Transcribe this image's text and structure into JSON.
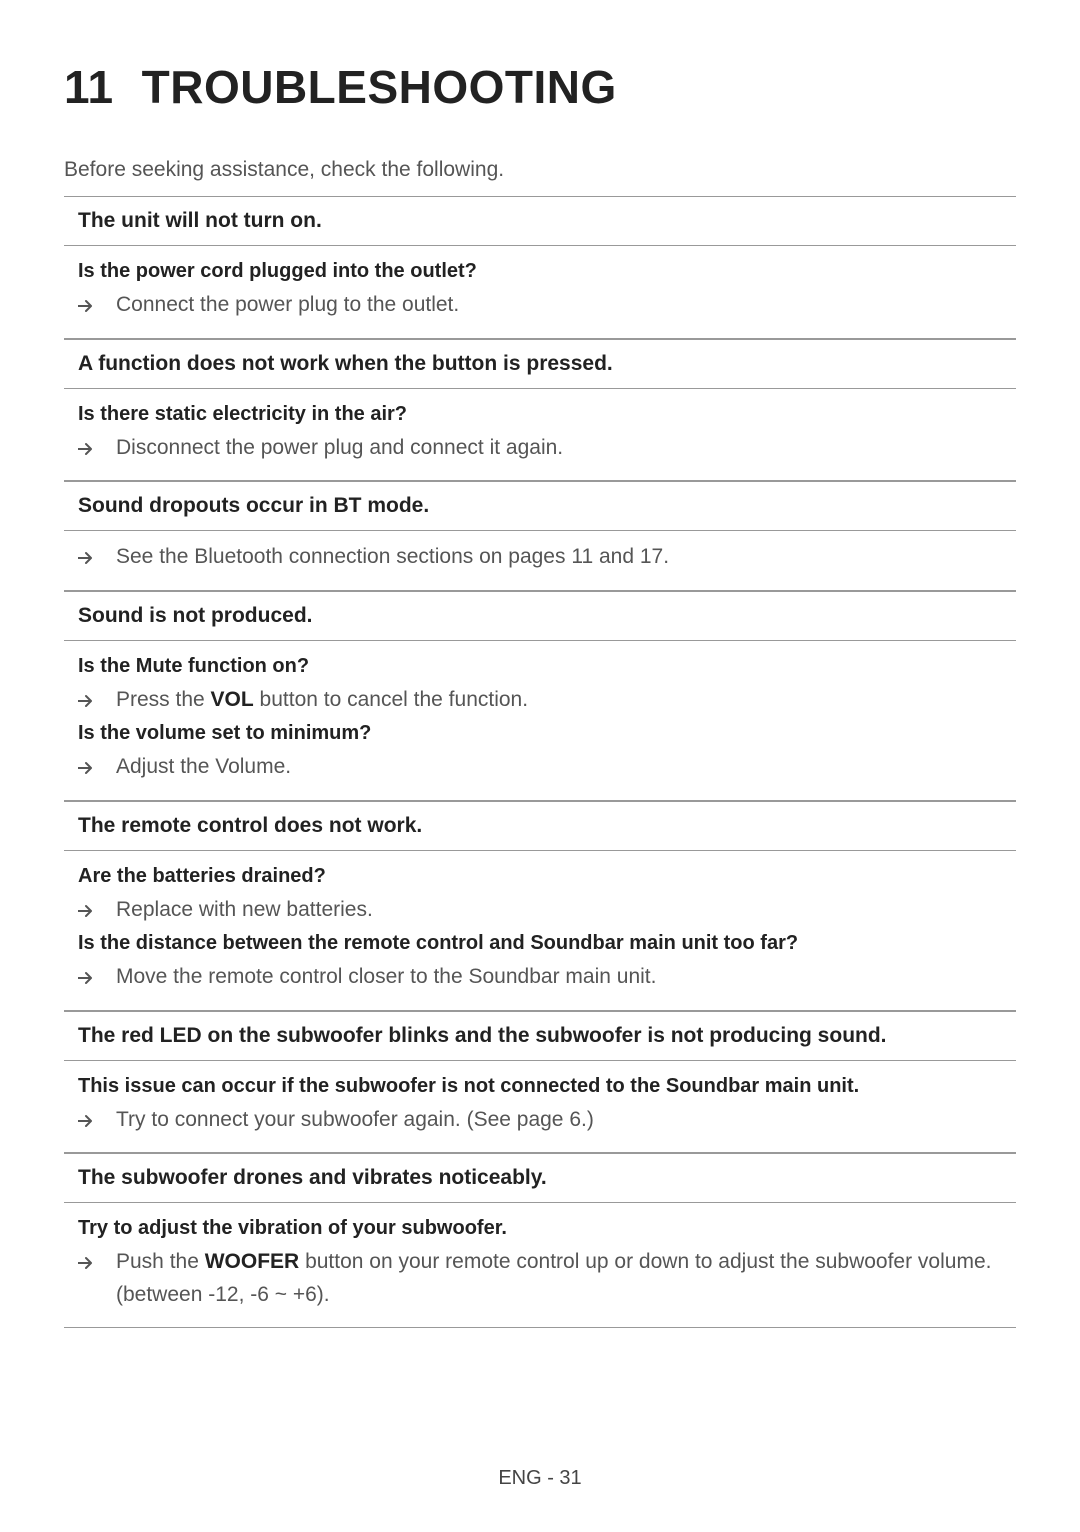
{
  "colors": {
    "text": "#222222",
    "muted": "#555555",
    "rule": "#999999",
    "bg": "#ffffff"
  },
  "heading": {
    "number": "11",
    "title": "TROUBLESHOOTING"
  },
  "intro": "Before seeking assistance, check the following.",
  "sections": [
    {
      "header": "The unit will not turn on.",
      "items": [
        {
          "q": "Is the power cord plugged into the outlet?",
          "a": "Connect the power plug to the outlet."
        }
      ]
    },
    {
      "header": "A function does not work when the button is pressed.",
      "items": [
        {
          "q": "Is there static electricity in the air?",
          "a": "Disconnect the power plug and connect it again."
        }
      ]
    },
    {
      "header": "Sound dropouts occur in BT mode.",
      "items": [
        {
          "a": "See the Bluetooth connection sections on pages 11 and 17."
        }
      ]
    },
    {
      "header": "Sound is not produced.",
      "items": [
        {
          "q": "Is the Mute function on?",
          "a_pre": "Press the ",
          "a_bold": "VOL",
          "a_post": " button to cancel the function."
        },
        {
          "q": "Is the volume set to minimum?",
          "a": "Adjust the Volume."
        }
      ]
    },
    {
      "header": "The remote control does not work.",
      "items": [
        {
          "q": "Are the batteries drained?",
          "a": "Replace with new batteries."
        },
        {
          "q": "Is the distance between the remote control and Soundbar main unit too far?",
          "a": "Move the remote control closer to the Soundbar main unit."
        }
      ]
    },
    {
      "header": "The red LED on the subwoofer blinks and the subwoofer is not producing sound.",
      "items": [
        {
          "q": "This issue can occur if the subwoofer is not connected to the Soundbar main unit.",
          "a": "Try to connect your subwoofer again. (See page 6.)"
        }
      ]
    },
    {
      "header": "The subwoofer drones and vibrates noticeably.",
      "items": [
        {
          "q": "Try to adjust the vibration of your subwoofer.",
          "a_pre": "Push the ",
          "a_bold": "WOOFER",
          "a_post": " button on your remote control up or down to adjust the subwoofer volume. (between -12, -6 ~ +6)."
        }
      ]
    }
  ],
  "footer": "ENG - 31"
}
